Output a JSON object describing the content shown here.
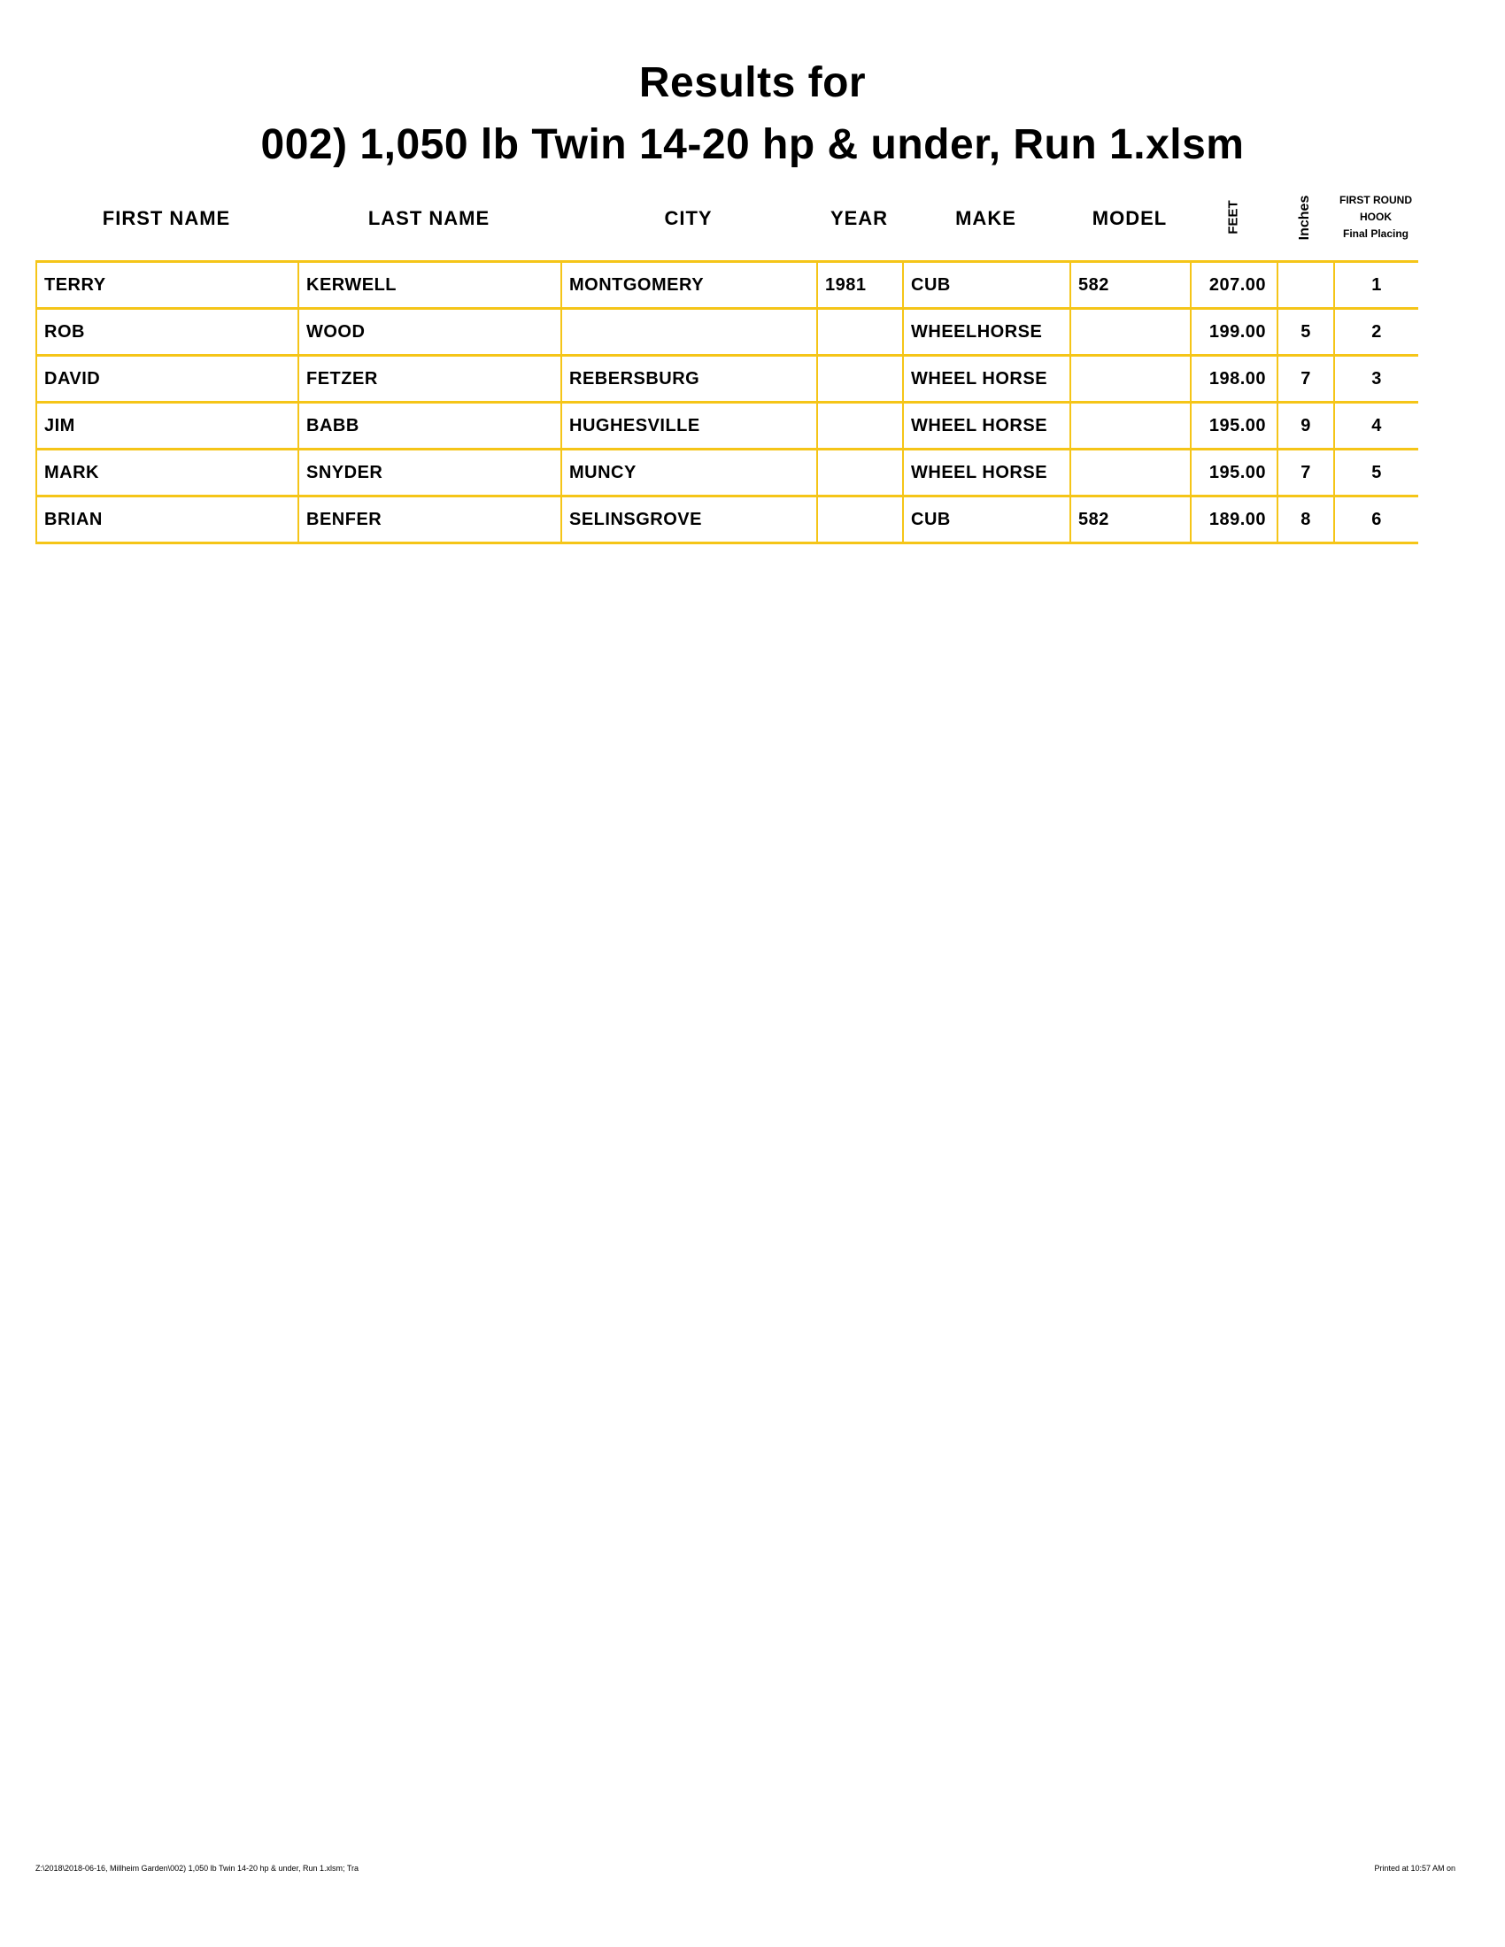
{
  "title": {
    "line1": "Results for",
    "line2": "002) 1,050 lb Twin 14-20 hp & under, Run 1.xlsm"
  },
  "headers": {
    "first_name": "FIRST NAME",
    "last_name": "LAST NAME",
    "city": "CITY",
    "year": "YEAR",
    "make": "MAKE",
    "model": "MODEL",
    "feet": "FEET",
    "inches": "Inches",
    "hook_line1": "FIRST ROUND",
    "hook_line2": "HOOK",
    "hook_line3": "Final Placing"
  },
  "rows": [
    {
      "first": "TERRY",
      "last": "KERWELL",
      "city": "MONTGOMERY",
      "year": "1981",
      "make": "CUB",
      "model": "582",
      "feet": "207.00",
      "inches": "",
      "place": "1"
    },
    {
      "first": "ROB",
      "last": "WOOD",
      "city": "",
      "year": "",
      "make": "WHEELHORSE",
      "model": "",
      "feet": "199.00",
      "inches": "5",
      "place": "2"
    },
    {
      "first": "DAVID",
      "last": "FETZER",
      "city": "REBERSBURG",
      "year": "",
      "make": "WHEEL HORSE",
      "model": "",
      "feet": "198.00",
      "inches": "7",
      "place": "3"
    },
    {
      "first": "JIM",
      "last": "BABB",
      "city": "HUGHESVILLE",
      "year": "",
      "make": "WHEEL HORSE",
      "model": "",
      "feet": "195.00",
      "inches": "9",
      "place": "4"
    },
    {
      "first": "MARK",
      "last": "SNYDER",
      "city": "MUNCY",
      "year": "",
      "make": "WHEEL HORSE",
      "model": "",
      "feet": "195.00",
      "inches": "7",
      "place": "5"
    },
    {
      "first": "BRIAN",
      "last": "BENFER",
      "city": "SELINSGROVE",
      "year": "",
      "make": "CUB",
      "model": "582",
      "feet": "189.00",
      "inches": "8",
      "place": "6"
    }
  ],
  "footer": {
    "path": "Z:\\2018\\2018-06-16, Millheim Garden\\002) 1,050 lb Twin 14-20 hp & under, Run 1.xlsm;  Tra",
    "printed": "Printed at 10:57 AM on"
  },
  "colors": {
    "border": "#f5c518"
  }
}
